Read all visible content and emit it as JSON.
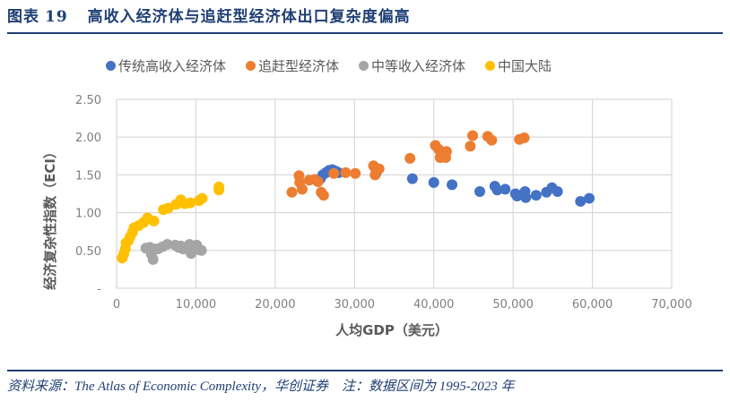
{
  "header": {
    "figure_label": "图表",
    "figure_number": "19",
    "title": "高收入经济体与追赶型经济体出口复杂度偏高"
  },
  "footer": {
    "source": "资料来源：The Atlas of Economic Complexity，华创证券　注：数据区间为 1995-2023 年"
  },
  "chart_data": {
    "type": "scatter",
    "title": "高收入经济体与追赶型经济体出口复杂度偏高",
    "xlabel": "人均GDP（美元）",
    "ylabel": "经济复杂性指数（ECI）",
    "xlim": [
      0,
      70000
    ],
    "ylim": [
      0,
      2.5
    ],
    "x_ticks": [
      0,
      10000,
      20000,
      30000,
      40000,
      50000,
      60000,
      70000
    ],
    "x_tick_labels": [
      "0",
      "10,000",
      "20,000",
      "30,000",
      "40,000",
      "50,000",
      "60,000",
      "70,000"
    ],
    "y_ticks": [
      0,
      0.5,
      1.0,
      1.5,
      2.0,
      2.5
    ],
    "y_tick_labels": [
      "-",
      "0.50",
      "1.00",
      "1.50",
      "2.00",
      "2.50"
    ],
    "grid": true,
    "legend_position": "top",
    "series": [
      {
        "name": "传统高收入经济体",
        "color": "#4472c4",
        "points": [
          [
            25700,
            1.45
          ],
          [
            26000,
            1.5
          ],
          [
            26400,
            1.53
          ],
          [
            26800,
            1.56
          ],
          [
            27200,
            1.57
          ],
          [
            27600,
            1.55
          ],
          [
            28000,
            1.53
          ],
          [
            32700,
            1.52
          ],
          [
            37300,
            1.45
          ],
          [
            40000,
            1.4
          ],
          [
            42300,
            1.37
          ],
          [
            45800,
            1.28
          ],
          [
            47700,
            1.35
          ],
          [
            48000,
            1.3
          ],
          [
            49000,
            1.31
          ],
          [
            50300,
            1.25
          ],
          [
            50500,
            1.22
          ],
          [
            51500,
            1.28
          ],
          [
            51600,
            1.2
          ],
          [
            52900,
            1.23
          ],
          [
            54200,
            1.27
          ],
          [
            54900,
            1.33
          ],
          [
            55600,
            1.28
          ],
          [
            58500,
            1.15
          ],
          [
            59600,
            1.19
          ]
        ]
      },
      {
        "name": "追赶型经济体",
        "color": "#ed7d31",
        "points": [
          [
            22100,
            1.27
          ],
          [
            23000,
            1.49
          ],
          [
            23100,
            1.4
          ],
          [
            23400,
            1.31
          ],
          [
            24300,
            1.43
          ],
          [
            25000,
            1.44
          ],
          [
            25400,
            1.41
          ],
          [
            25800,
            1.27
          ],
          [
            26100,
            1.23
          ],
          [
            27400,
            1.52
          ],
          [
            28900,
            1.53
          ],
          [
            30100,
            1.52
          ],
          [
            32400,
            1.62
          ],
          [
            32600,
            1.5
          ],
          [
            33100,
            1.58
          ],
          [
            37000,
            1.72
          ],
          [
            40200,
            1.89
          ],
          [
            40600,
            1.84
          ],
          [
            40800,
            1.73
          ],
          [
            41000,
            1.74
          ],
          [
            41500,
            1.73
          ],
          [
            41600,
            1.81
          ],
          [
            44600,
            1.88
          ],
          [
            44900,
            2.02
          ],
          [
            46800,
            2.01
          ],
          [
            47300,
            1.96
          ],
          [
            50800,
            1.97
          ],
          [
            51400,
            1.99
          ]
        ]
      },
      {
        "name": "中等收入经济体",
        "color": "#a5a5a5",
        "points": [
          [
            3700,
            0.53
          ],
          [
            4200,
            0.54
          ],
          [
            4400,
            0.45
          ],
          [
            4600,
            0.38
          ],
          [
            4800,
            0.52
          ],
          [
            5200,
            0.52
          ],
          [
            5800,
            0.55
          ],
          [
            6400,
            0.58
          ],
          [
            7400,
            0.57
          ],
          [
            7800,
            0.54
          ],
          [
            8100,
            0.56
          ],
          [
            8400,
            0.52
          ],
          [
            9200,
            0.58
          ],
          [
            9400,
            0.46
          ],
          [
            9700,
            0.55
          ],
          [
            10100,
            0.57
          ],
          [
            10400,
            0.51
          ],
          [
            10700,
            0.5
          ]
        ]
      },
      {
        "name": "中国大陆",
        "color": "#ffc000",
        "points": [
          [
            700,
            0.4
          ],
          [
            900,
            0.45
          ],
          [
            1100,
            0.52
          ],
          [
            1200,
            0.6
          ],
          [
            1500,
            0.63
          ],
          [
            1700,
            0.68
          ],
          [
            2000,
            0.74
          ],
          [
            2200,
            0.8
          ],
          [
            2800,
            0.83
          ],
          [
            3400,
            0.87
          ],
          [
            3900,
            0.93
          ],
          [
            4700,
            0.89
          ],
          [
            5900,
            1.04
          ],
          [
            6500,
            1.06
          ],
          [
            7500,
            1.11
          ],
          [
            8100,
            1.17
          ],
          [
            8600,
            1.12
          ],
          [
            9300,
            1.13
          ],
          [
            10400,
            1.16
          ],
          [
            10800,
            1.19
          ],
          [
            12900,
            1.3
          ],
          [
            12900,
            1.34
          ]
        ]
      }
    ]
  }
}
